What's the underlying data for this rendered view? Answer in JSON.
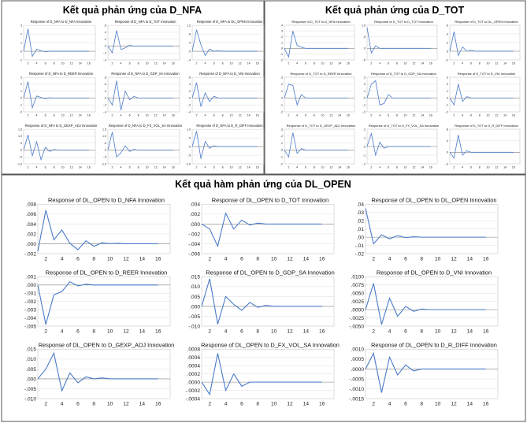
{
  "headers": {
    "nfa": "Kết quả phản ứng của D_NFA",
    "tot": "Kết quả phản ứng của D_TOT",
    "open": "Kết quả hàm phản ứng của DL_OPEN"
  },
  "chart_data": [
    {
      "panel": "nfa",
      "type": "line",
      "title": "Response of D_NFA to D_NFA Innovation",
      "ylim": [
        -1,
        3
      ],
      "yticks": [
        "3",
        "2",
        "1",
        "0",
        "-1"
      ],
      "xticks": [
        "2",
        "4",
        "6",
        "8",
        "10",
        "12",
        "14",
        "16"
      ],
      "values": [
        0,
        2.6,
        -0.6,
        0.25,
        0.05,
        -0.05,
        0,
        0,
        0,
        0,
        0,
        0,
        0,
        0,
        0,
        0
      ]
    },
    {
      "panel": "nfa",
      "type": "line",
      "title": "Response of D_NFA to D_TOT Innovation",
      "ylim": [
        -0.4,
        0.6
      ],
      "yticks": [
        ".6",
        ".4",
        ".2",
        ".0",
        "-.2",
        "-.4"
      ],
      "xticks": [
        "2",
        "4",
        "6",
        "8",
        "10",
        "12",
        "14",
        "16"
      ],
      "values": [
        0,
        -0.2,
        0.45,
        -0.1,
        -0.05,
        0.02,
        0,
        0,
        0,
        0,
        0,
        0,
        0,
        0,
        0,
        0
      ]
    },
    {
      "panel": "nfa",
      "type": "line",
      "title": "Response of D_NFA to DL_OPEN Innovation",
      "ylim": [
        -0.4,
        1.2
      ],
      "yticks": [
        "1.2",
        ".8",
        ".4",
        ".0",
        "-.4"
      ],
      "xticks": [
        "2",
        "4",
        "6",
        "8",
        "10",
        "12",
        "14",
        "16"
      ],
      "values": [
        0,
        1.0,
        0.3,
        -0.2,
        0.1,
        0,
        0.02,
        0,
        0,
        0,
        0,
        0,
        0,
        0,
        0,
        0
      ]
    },
    {
      "panel": "nfa",
      "type": "line",
      "title": "Response of D_NFA to D_REER Innovation",
      "ylim": [
        -2,
        3
      ],
      "yticks": [
        "3",
        "2",
        "1",
        "0",
        "-1",
        "-2"
      ],
      "xticks": [
        "2",
        "4",
        "6",
        "8",
        "10",
        "12",
        "14",
        "16"
      ],
      "values": [
        0,
        2.4,
        -1.4,
        0.3,
        0.1,
        -0.1,
        0.05,
        0,
        0,
        0,
        0,
        0,
        0,
        0,
        0,
        0
      ]
    },
    {
      "panel": "nfa",
      "type": "line",
      "title": "Response of D_NFA to D_GDP_SA Innovation",
      "ylim": [
        -0.4,
        0.6
      ],
      "yticks": [
        ".6",
        ".4",
        ".2",
        ".0",
        "-.2",
        "-.4"
      ],
      "xticks": [
        "2",
        "4",
        "6",
        "8",
        "10",
        "12",
        "14",
        "16"
      ],
      "values": [
        0,
        -0.2,
        0.5,
        -0.35,
        0.2,
        -0.05,
        0.05,
        0,
        0,
        0,
        0,
        0,
        0,
        0,
        0,
        0
      ]
    },
    {
      "panel": "nfa",
      "type": "line",
      "title": "Response of D_NFA to D_VNI Innovation",
      "ylim": [
        -0.4,
        0.6
      ],
      "yticks": [
        ".6",
        ".4",
        ".2",
        ".0",
        "-.2",
        "-.4"
      ],
      "xticks": [
        "2",
        "4",
        "6",
        "8",
        "10",
        "12",
        "14",
        "16"
      ],
      "values": [
        0,
        0.45,
        -0.25,
        0.15,
        -0.1,
        0.05,
        0,
        0,
        0,
        0,
        0,
        0,
        0,
        0,
        0,
        0
      ]
    },
    {
      "panel": "nfa",
      "type": "line",
      "title": "Response of D_NFA to D_GEXP_ADJ Innovation",
      "ylim": [
        -1.0,
        1.5
      ],
      "yticks": [
        "1.5",
        "1.0",
        ".5",
        ".0",
        "-.5",
        "-1.0"
      ],
      "xticks": [
        "2",
        "4",
        "6",
        "8",
        "10",
        "12",
        "14",
        "16"
      ],
      "values": [
        0,
        1.1,
        -0.4,
        0.6,
        -0.7,
        0.2,
        -0.1,
        0.05,
        0,
        0,
        0,
        0,
        0,
        0,
        0,
        0
      ]
    },
    {
      "panel": "nfa",
      "type": "line",
      "title": "Response of D_NFA to D_FX_VOL_SA Innovation",
      "ylim": [
        -1.0,
        1.5
      ],
      "yticks": [
        "1.5",
        "1.0",
        ".5",
        ".0",
        "-.5",
        "-1.0"
      ],
      "xticks": [
        "2",
        "4",
        "6",
        "8",
        "10",
        "12",
        "14",
        "16"
      ],
      "values": [
        0,
        1.3,
        -0.5,
        -0.2,
        0.3,
        -0.1,
        0.05,
        0,
        0,
        0,
        0,
        0,
        0,
        0,
        0,
        0
      ]
    },
    {
      "panel": "nfa",
      "type": "line",
      "title": "Response of D_NFA to D_R_DIFF Innovation",
      "ylim": [
        -1.0,
        1.0
      ],
      "yticks": [
        "1.0",
        ".5",
        ".0",
        "-.5",
        "-1.0"
      ],
      "xticks": [
        "2",
        "4",
        "6",
        "8",
        "10",
        "12",
        "14",
        "16"
      ],
      "values": [
        0,
        0.9,
        -0.7,
        0.3,
        -0.1,
        0.05,
        0,
        0,
        0,
        0,
        0,
        0,
        0,
        0,
        0,
        0
      ]
    },
    {
      "panel": "tot",
      "type": "line",
      "title": "Response of D_TOT to D_NFA Innovation",
      "ylim": [
        -0.2,
        0.4
      ],
      "yticks": [
        ".4",
        ".3",
        ".2",
        ".1",
        ".0",
        "-.1",
        "-.2"
      ],
      "xticks": [
        "2",
        "4",
        "6",
        "8",
        "10",
        "12",
        "14",
        "16"
      ],
      "values": [
        0,
        -0.15,
        0.3,
        0.05,
        0.02,
        0,
        0,
        0,
        0,
        0,
        0,
        0,
        0,
        0,
        0,
        0
      ]
    },
    {
      "panel": "tot",
      "type": "line",
      "title": "Response of D_TOT to D_TOT Innovation",
      "ylim": [
        -0.5,
        1.0
      ],
      "yticks": [
        "1.0",
        ".5",
        ".0",
        "-.5"
      ],
      "xticks": [
        "2",
        "4",
        "6",
        "8",
        "10",
        "12",
        "14",
        "16"
      ],
      "values": [
        0.9,
        -0.2,
        0.1,
        0,
        0,
        0,
        0,
        0,
        0,
        0,
        0,
        0,
        0,
        0,
        0,
        0
      ]
    },
    {
      "panel": "tot",
      "type": "line",
      "title": "Response of D_TOT to DL_OPEN Innovation",
      "ylim": [
        -0.2,
        0.6
      ],
      "yticks": [
        ".6",
        ".4",
        ".2",
        ".0",
        "-.2"
      ],
      "xticks": [
        "2",
        "4",
        "6",
        "8",
        "10",
        "12",
        "14",
        "16"
      ],
      "values": [
        0,
        0.45,
        -0.1,
        0.1,
        0,
        0.02,
        0,
        0,
        0,
        0,
        0,
        0,
        0,
        0,
        0,
        0
      ]
    },
    {
      "panel": "tot",
      "type": "line",
      "title": "Response of D_TOT to D_REER Innovation",
      "ylim": [
        -0.2,
        0.3
      ],
      "yticks": [
        ".3",
        ".2",
        ".1",
        ".0",
        "-.1",
        "-.2"
      ],
      "xticks": [
        "2",
        "4",
        "6",
        "8",
        "10",
        "12",
        "14",
        "16"
      ],
      "values": [
        0,
        0.2,
        0.18,
        -0.1,
        0.05,
        0,
        0,
        0,
        0,
        0,
        0,
        0,
        0,
        0,
        0,
        0
      ]
    },
    {
      "panel": "tot",
      "type": "line",
      "title": "Response of D_TOT to D_GDP_SA Innovation",
      "ylim": [
        -0.2,
        0.3
      ],
      "yticks": [
        ".3",
        ".2",
        ".1",
        ".0",
        "-.1",
        "-.2"
      ],
      "xticks": [
        "2",
        "4",
        "6",
        "8",
        "10",
        "12",
        "14",
        "16"
      ],
      "values": [
        0,
        0.2,
        0.25,
        -0.1,
        -0.08,
        0.05,
        0,
        0,
        0,
        0,
        0,
        0,
        0,
        0,
        0,
        0
      ]
    },
    {
      "panel": "tot",
      "type": "line",
      "title": "Response of D_TOT to D_VNI Innovation",
      "ylim": [
        -0.2,
        0.3
      ],
      "yticks": [
        ".3",
        ".2",
        ".1",
        ".0",
        "-.1",
        "-.2"
      ],
      "xticks": [
        "2",
        "4",
        "6",
        "8",
        "10",
        "12",
        "14",
        "16"
      ],
      "values": [
        0,
        -0.1,
        0.2,
        -0.05,
        0.02,
        0,
        0,
        0,
        0,
        0,
        0,
        0,
        0,
        0,
        0,
        0
      ]
    },
    {
      "panel": "tot",
      "type": "line",
      "title": "Response of D_TOT to D_GEXP_ADJ Innovation",
      "ylim": [
        -0.2,
        0.3
      ],
      "yticks": [
        ".3",
        ".2",
        ".1",
        ".0",
        "-.1",
        "-.2"
      ],
      "xticks": [
        "2",
        "4",
        "6",
        "8",
        "10",
        "12",
        "14",
        "16"
      ],
      "values": [
        0,
        -0.1,
        0.25,
        -0.05,
        0.02,
        0,
        0,
        0,
        0,
        0,
        0,
        0,
        0,
        0,
        0,
        0
      ]
    },
    {
      "panel": "tot",
      "type": "line",
      "title": "Response of D_TOT to D_FX_VOL_SA Innovation",
      "ylim": [
        -0.2,
        0.2
      ],
      "yticks": [
        ".2",
        ".1",
        ".0",
        "-.1",
        "-.2"
      ],
      "xticks": [
        "2",
        "4",
        "6",
        "8",
        "10",
        "12",
        "14",
        "16"
      ],
      "values": [
        0,
        0.15,
        -0.1,
        0.05,
        -0.02,
        0,
        0,
        0,
        0,
        0,
        0,
        0,
        0,
        0,
        0,
        0
      ]
    },
    {
      "panel": "tot",
      "type": "line",
      "title": "Response of D_TOT to D_R_DIFF Innovation",
      "ylim": [
        -0.4,
        0.8
      ],
      "yticks": [
        ".8",
        ".4",
        ".0",
        "-.4"
      ],
      "xticks": [
        "2",
        "4",
        "6",
        "8",
        "10",
        "12",
        "14",
        "16"
      ],
      "values": [
        0,
        -0.2,
        0.6,
        -0.1,
        0.05,
        0,
        0,
        0,
        0,
        0,
        0,
        0,
        0,
        0,
        0,
        0
      ]
    },
    {
      "panel": "open",
      "type": "line",
      "title": "Response of DL_OPEN to D_NFA Innovation",
      "ylim": [
        -0.002,
        0.008
      ],
      "yticks": [
        ".008",
        ".006",
        ".004",
        ".002",
        ".000",
        "-.002"
      ],
      "xticks": [
        "2",
        "4",
        "6",
        "8",
        "10",
        "12",
        "14",
        "16"
      ],
      "values": [
        -0.0015,
        0.0068,
        0.0008,
        0.0028,
        0.0001,
        -0.0012,
        0.0006,
        -0.0005,
        0.0002,
        0,
        0.0001,
        0,
        0,
        0,
        0,
        0
      ]
    },
    {
      "panel": "open",
      "type": "line",
      "title": "Response of DL_OPEN to D_TOT Innovation",
      "ylim": [
        -0.006,
        0.004
      ],
      "yticks": [
        ".004",
        ".002",
        ".000",
        "-.002",
        "-.004",
        "-.006"
      ],
      "xticks": [
        "2",
        "4",
        "6",
        "8",
        "10",
        "12",
        "14",
        "16"
      ],
      "values": [
        0,
        -0.001,
        -0.0045,
        0.0022,
        -0.001,
        0.0008,
        -0.0002,
        0.0002,
        0,
        0,
        0,
        0,
        0,
        0,
        0,
        0
      ]
    },
    {
      "panel": "open",
      "type": "line",
      "title": "Response of DL_OPEN to DL_OPEN Innovation",
      "ylim": [
        -0.02,
        0.04
      ],
      "yticks": [
        ".04",
        ".03",
        ".02",
        ".01",
        ".00",
        "-.01",
        "-.02"
      ],
      "xticks": [
        "2",
        "4",
        "6",
        "8",
        "10",
        "12",
        "14",
        "16"
      ],
      "values": [
        0.035,
        -0.008,
        0.003,
        -0.002,
        0.002,
        -0.0005,
        0.0005,
        0,
        0,
        0,
        0,
        0,
        0,
        0,
        0,
        0
      ]
    },
    {
      "panel": "open",
      "type": "line",
      "title": "Response of DL_OPEN to D_REER Innovation",
      "ylim": [
        -0.005,
        0.001
      ],
      "yticks": [
        ".001",
        ".000",
        "-.001",
        "-.002",
        "-.003",
        "-.004",
        "-.005"
      ],
      "xticks": [
        "2",
        "4",
        "6",
        "8",
        "10",
        "12",
        "14",
        "16"
      ],
      "values": [
        0,
        -0.0048,
        -0.0012,
        -0.0008,
        0.0004,
        -0.0001,
        0.0001,
        0,
        0,
        0,
        0,
        0,
        0,
        0,
        0,
        0
      ]
    },
    {
      "panel": "open",
      "type": "line",
      "title": "Response of DL_OPEN to D_GDP_SA Innovation",
      "ylim": [
        -0.01,
        0.015
      ],
      "yticks": [
        ".015",
        ".010",
        ".005",
        ".000",
        "-.005",
        "-.010"
      ],
      "xticks": [
        "2",
        "4",
        "6",
        "8",
        "10",
        "12",
        "14",
        "16"
      ],
      "values": [
        0,
        0.014,
        -0.009,
        0.005,
        0.001,
        -0.002,
        0.002,
        -0.0005,
        0.0005,
        0,
        0,
        0,
        0,
        0,
        0,
        0
      ]
    },
    {
      "panel": "open",
      "type": "line",
      "title": "Response of DL_OPEN to D_VNI Innovation",
      "ylim": [
        -0.005,
        0.01
      ],
      "yticks": [
        ".0100",
        ".0075",
        ".0050",
        ".0025",
        ".0000",
        "-.0025",
        "-.0050"
      ],
      "xticks": [
        "2",
        "4",
        "6",
        "8",
        "10",
        "12",
        "14",
        "16"
      ],
      "values": [
        0,
        0.008,
        -0.0045,
        0.0035,
        -0.002,
        0.001,
        -0.0005,
        0.0002,
        0,
        0,
        0,
        0,
        0,
        0,
        0,
        0
      ]
    },
    {
      "panel": "open",
      "type": "line",
      "title": "Response of DL_OPEN to D_GEXP_ADJ Innovation",
      "ylim": [
        -0.01,
        0.015
      ],
      "yticks": [
        ".015",
        ".010",
        ".005",
        ".000",
        "-.005",
        "-.010"
      ],
      "xticks": [
        "2",
        "4",
        "6",
        "8",
        "10",
        "12",
        "14",
        "16"
      ],
      "values": [
        0,
        0.005,
        0.013,
        -0.006,
        0.003,
        -0.002,
        0.001,
        0,
        0.0005,
        0,
        0,
        0,
        0,
        0,
        0,
        0
      ]
    },
    {
      "panel": "open",
      "type": "line",
      "title": "Response of DL_OPEN to D_FX_VOL_SA Innovation",
      "ylim": [
        -0.0004,
        0.0008
      ],
      "yticks": [
        ".0008",
        ".0006",
        ".0004",
        ".0002",
        ".0000",
        "-.0002",
        "-.0004"
      ],
      "xticks": [
        "2",
        "4",
        "6",
        "8",
        "10",
        "12",
        "14",
        "16"
      ],
      "values": [
        0,
        -0.0003,
        0.0007,
        -0.0002,
        0.0002,
        -0.0001,
        0,
        0,
        0,
        0,
        0,
        0,
        0,
        0,
        0,
        0
      ]
    },
    {
      "panel": "open",
      "type": "line",
      "title": "Response of DL_OPEN to D_R_DIFF Innovation",
      "ylim": [
        -0.0015,
        0.001
      ],
      "yticks": [
        ".0010",
        ".0005",
        ".0000",
        "-.0005",
        "-.0010",
        "-.0015"
      ],
      "xticks": [
        "2",
        "4",
        "6",
        "8",
        "10",
        "12",
        "14",
        "16"
      ],
      "values": [
        0,
        0.0008,
        -0.0012,
        0.0006,
        -0.0003,
        0.0002,
        -0.0001,
        0,
        0,
        0,
        0,
        0,
        0,
        0,
        0,
        0
      ]
    }
  ]
}
